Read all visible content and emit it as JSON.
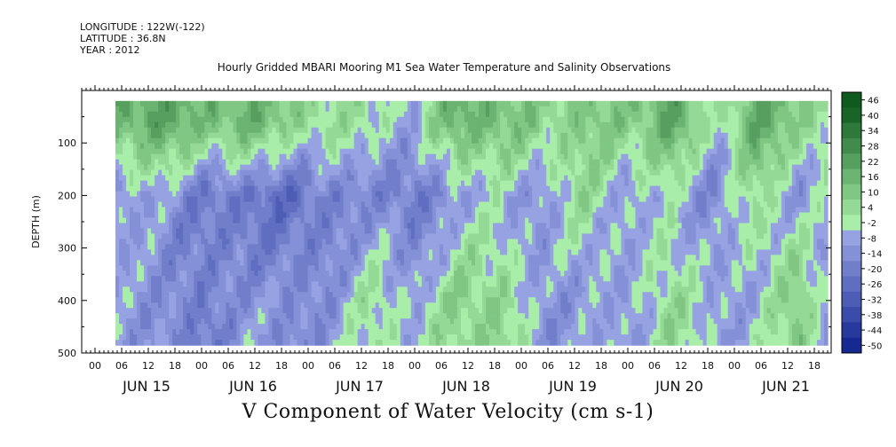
{
  "header": {
    "longitude": "LONGITUDE : 122W(-122)",
    "latitude": "LATITUDE : 36.8N",
    "year": "YEAR : 2012"
  },
  "chart_data": {
    "type": "heatmap",
    "title": "Hourly Gridded MBARI Mooring M1 Sea Water Temperature and Salinity Observations",
    "variable_label": "V Component of Water Velocity (cm s-1)",
    "ylabel": "DEPTH (m)",
    "y_inverted": true,
    "ylim": [
      500,
      0
    ],
    "y_ticks": [
      100,
      200,
      300,
      400,
      500
    ],
    "data_depth_range": [
      20,
      485
    ],
    "x_hour_ticks": [
      "00",
      "06",
      "12",
      "18",
      "00",
      "06",
      "12",
      "18",
      "00",
      "06",
      "12",
      "18",
      "00",
      "06",
      "12",
      "18",
      "00",
      "06",
      "12",
      "18",
      "00",
      "06",
      "12",
      "18",
      "00",
      "06",
      "12",
      "18"
    ],
    "x_day_labels": [
      "JUN 15",
      "JUN 16",
      "JUN 17",
      "JUN 18",
      "JUN 19",
      "JUN 20",
      "JUN 21"
    ],
    "colorbar": {
      "levels": [
        -50,
        -44,
        -38,
        -32,
        -26,
        -20,
        -14,
        -8,
        -2,
        4,
        10,
        16,
        22,
        28,
        34,
        40,
        46
      ],
      "tick_labels": [
        "46",
        "40",
        "34",
        "28",
        "22",
        "16",
        "10",
        "4",
        "-2",
        "-8",
        "-14",
        "-20",
        "-26",
        "-32",
        "-38",
        "-44",
        "-50"
      ],
      "low_color": "#0d1f8c",
      "mid_low_color": "#a8b4ee",
      "mid_high_color": "#a8eea8",
      "high_color": "#0f5a1f"
    },
    "zone_profiles": [
      {
        "time_frac": 0.0,
        "surface": 18,
        "mid": -8,
        "deep": -6
      },
      {
        "time_frac": 0.06,
        "surface": 24,
        "mid": -6,
        "deep": -10
      },
      {
        "time_frac": 0.12,
        "surface": 14,
        "mid": -16,
        "deep": -18
      },
      {
        "time_frac": 0.18,
        "surface": 20,
        "mid": -20,
        "deep": -8
      },
      {
        "time_frac": 0.24,
        "surface": 10,
        "mid": -22,
        "deep": -12
      },
      {
        "time_frac": 0.3,
        "surface": 6,
        "mid": -16,
        "deep": -10
      },
      {
        "time_frac": 0.36,
        "surface": 2,
        "mid": -12,
        "deep": 4
      },
      {
        "time_frac": 0.42,
        "surface": -4,
        "mid": -20,
        "deep": -4
      },
      {
        "time_frac": 0.48,
        "surface": 20,
        "mid": -6,
        "deep": 8
      },
      {
        "time_frac": 0.54,
        "surface": 16,
        "mid": -4,
        "deep": 10
      },
      {
        "time_frac": 0.6,
        "surface": 8,
        "mid": -8,
        "deep": -10
      },
      {
        "time_frac": 0.66,
        "surface": 12,
        "mid": 6,
        "deep": -6
      },
      {
        "time_frac": 0.72,
        "surface": 10,
        "mid": -6,
        "deep": -8
      },
      {
        "time_frac": 0.78,
        "surface": 24,
        "mid": -2,
        "deep": 8
      },
      {
        "time_frac": 0.84,
        "surface": -2,
        "mid": -12,
        "deep": -6
      },
      {
        "time_frac": 0.9,
        "surface": 22,
        "mid": 6,
        "deep": -4
      },
      {
        "time_frac": 0.96,
        "surface": 10,
        "mid": -8,
        "deep": 12
      },
      {
        "time_frac": 1.0,
        "surface": 6,
        "mid": -4,
        "deep": -6
      }
    ]
  }
}
